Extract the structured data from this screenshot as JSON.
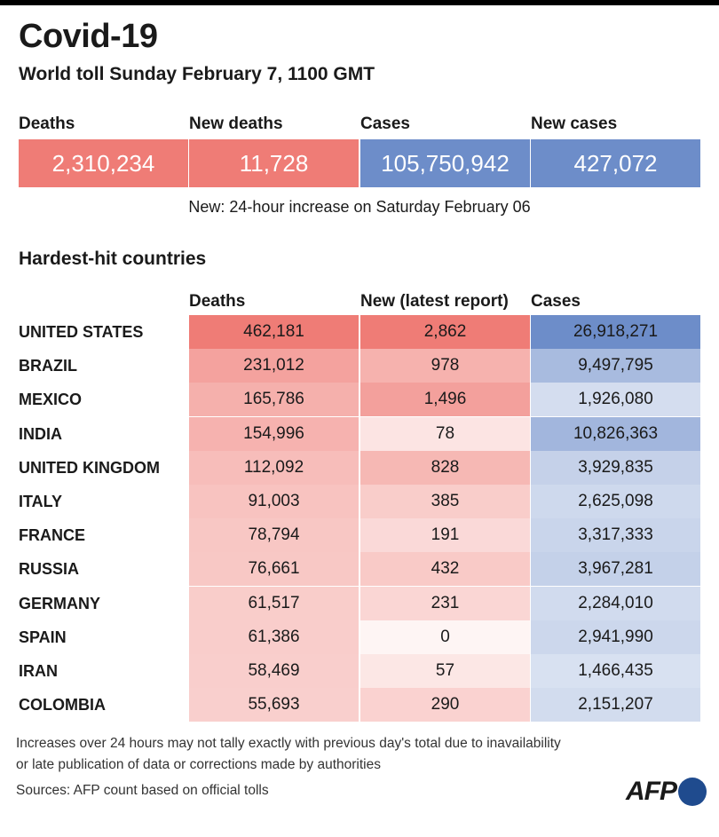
{
  "header": {
    "title": "Covid-19",
    "subtitle": "World toll Sunday February 7, 1100 GMT"
  },
  "summary": [
    {
      "label": "Deaths",
      "value": "2,310,234",
      "color": "#ef7c76"
    },
    {
      "label": "New deaths",
      "value": "11,728",
      "color": "#ef7c76"
    },
    {
      "label": "Cases",
      "value": "105,750,942",
      "color": "#6d8dc9"
    },
    {
      "label": "New cases",
      "value": "427,072",
      "color": "#6d8dc9"
    }
  ],
  "summary_note": "New: 24-hour increase on Saturday February 06",
  "section_title": "Hardest-hit countries",
  "columns": {
    "deaths": "Deaths",
    "new": "New (latest report)",
    "cases": "Cases"
  },
  "colors": {
    "deaths_base": "#ef7c76",
    "cases_base": "#6d8dc9"
  },
  "chart_data": {
    "type": "table",
    "title": "Covid-19",
    "subtitle": "World toll Sunday February 7, 1100 GMT",
    "columns": [
      "Deaths",
      "New (latest report)",
      "Cases"
    ],
    "rows": [
      {
        "country": "UNITED STATES",
        "deaths": 462181,
        "new": 2862,
        "cases": 26918271
      },
      {
        "country": "BRAZIL",
        "deaths": 231012,
        "new": 978,
        "cases": 9497795
      },
      {
        "country": "MEXICO",
        "deaths": 165786,
        "new": 1496,
        "cases": 1926080
      },
      {
        "country": "INDIA",
        "deaths": 154996,
        "new": 78,
        "cases": 10826363
      },
      {
        "country": "UNITED KINGDOM",
        "deaths": 112092,
        "new": 828,
        "cases": 3929835
      },
      {
        "country": "ITALY",
        "deaths": 91003,
        "new": 385,
        "cases": 2625098
      },
      {
        "country": "FRANCE",
        "deaths": 78794,
        "new": 191,
        "cases": 3317333
      },
      {
        "country": "RUSSIA",
        "deaths": 76661,
        "new": 432,
        "cases": 3967281
      },
      {
        "country": "GERMANY",
        "deaths": 61517,
        "new": 231,
        "cases": 2284010
      },
      {
        "country": "SPAIN",
        "deaths": 61386,
        "new": 0,
        "cases": 2941990
      },
      {
        "country": "IRAN",
        "deaths": 58469,
        "new": 57,
        "cases": 1466435
      },
      {
        "country": "COLOMBIA",
        "deaths": 55693,
        "new": 290,
        "cases": 2151207
      }
    ]
  },
  "footnote_lines": [
    "Increases over 24 hours may not tally exactly with previous day's total due to inavailability",
    "or late publication of data or corrections made by authorities"
  ],
  "source": "Sources: AFP count based on official tolls",
  "logo": {
    "text": "AFP"
  }
}
